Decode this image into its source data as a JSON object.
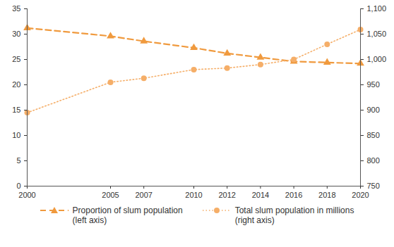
{
  "chart_data": {
    "type": "line",
    "x": [
      2000,
      2005,
      2007,
      2010,
      2012,
      2014,
      2016,
      2018,
      2020
    ],
    "xlim": [
      2000,
      2020
    ],
    "xticks": [
      2000,
      2005,
      2007,
      2010,
      2012,
      2014,
      2016,
      2018,
      2020
    ],
    "ylim": [
      0,
      35
    ],
    "yticks": [
      0,
      5,
      10,
      15,
      20,
      25,
      30,
      35
    ],
    "y2lim": [
      750,
      1100
    ],
    "y2ticks": [
      750,
      800,
      850,
      900,
      950,
      {
        "value": 1000,
        "label": "1,000"
      },
      {
        "value": 1050,
        "label": "1,050"
      },
      {
        "value": 1100,
        "label": "1,100"
      }
    ],
    "grid": false,
    "legend": "bottom",
    "series": [
      {
        "name": "Proportion of slum population (left axis)",
        "color": "#f09a3e",
        "marker": "triangle",
        "line_style": "dashed",
        "values": [
          31.2,
          29.6,
          28.6,
          27.3,
          26.2,
          25.4,
          24.6,
          24.4,
          24.2
        ]
      },
      {
        "name": "Total slum population in millions (right axis)",
        "color": "#f5ae68",
        "marker": "circle",
        "line_style": "dotted",
        "axis": "y2",
        "values": [
          895,
          955,
          963,
          980,
          983,
          990,
          1000,
          1030,
          1059
        ]
      }
    ]
  }
}
